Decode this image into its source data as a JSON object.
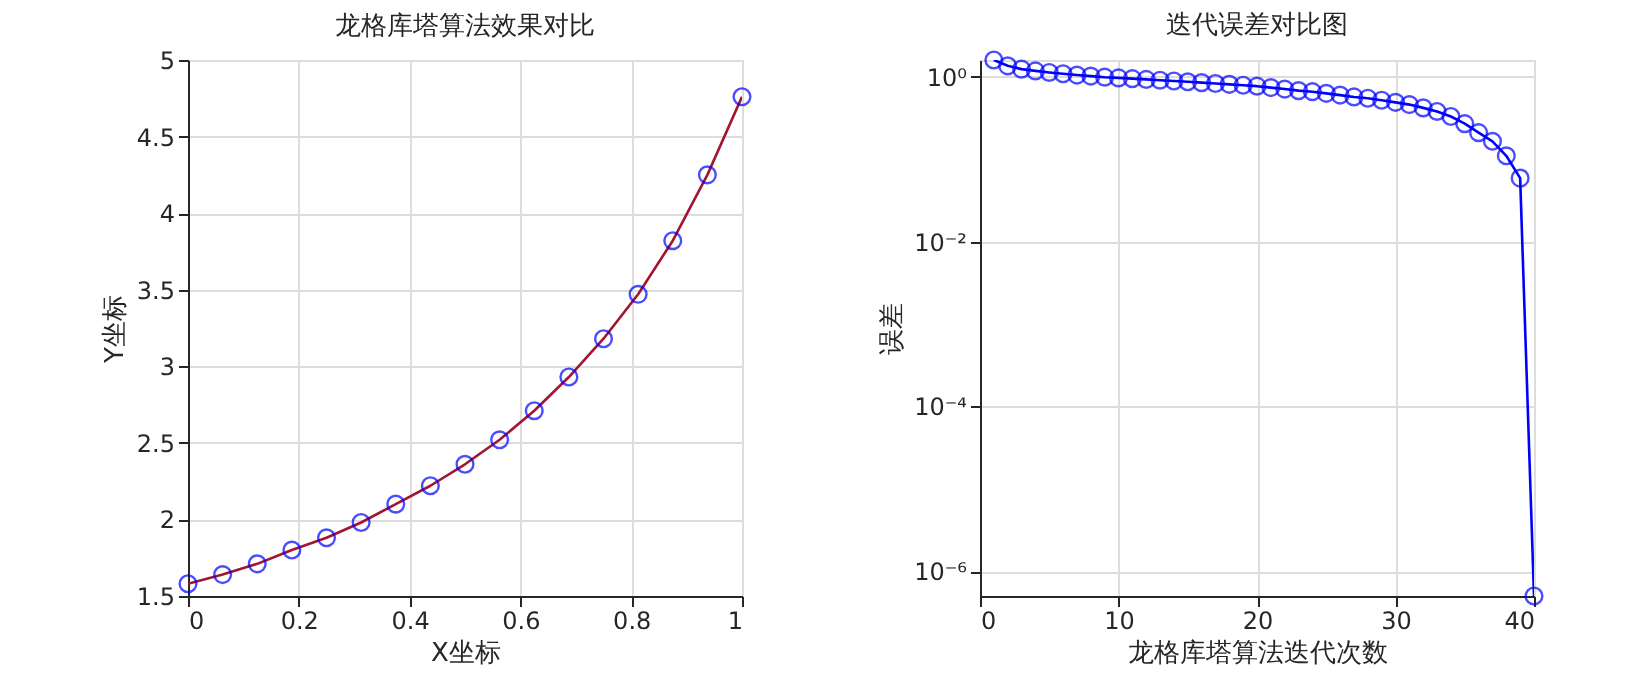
{
  "chart_data": [
    {
      "type": "line",
      "title": "龙格库塔算法效果对比",
      "xlabel": "X坐标",
      "ylabel": "Y坐标",
      "x": [
        0,
        0.0625,
        0.125,
        0.1875,
        0.25,
        0.3125,
        0.375,
        0.4375,
        0.5,
        0.5625,
        0.625,
        0.6875,
        0.75,
        0.8125,
        0.875,
        0.9375,
        1
      ],
      "series": [
        {
          "type": "line",
          "color": "#a2142f",
          "marker": "none",
          "values": [
            1.58,
            1.64,
            1.71,
            1.8,
            1.88,
            1.98,
            2.1,
            2.22,
            2.36,
            2.52,
            2.71,
            2.93,
            3.18,
            3.47,
            3.82,
            4.25,
            4.76
          ]
        },
        {
          "type": "scatter",
          "color": "#0000ff",
          "marker": "circle",
          "values": [
            1.58,
            1.64,
            1.71,
            1.8,
            1.88,
            1.98,
            2.1,
            2.22,
            2.36,
            2.52,
            2.71,
            2.93,
            3.18,
            3.47,
            3.82,
            4.25,
            4.76
          ]
        }
      ],
      "xlim": [
        0,
        1
      ],
      "xticks": [
        0,
        0.2,
        0.4,
        0.6,
        0.8,
        1
      ],
      "ylim": [
        1.5,
        5
      ],
      "yticks": [
        1.5,
        2,
        2.5,
        3,
        3.5,
        4,
        4.5,
        5
      ],
      "grid": true,
      "legend": false
    },
    {
      "type": "line",
      "title": "迭代误差对比图",
      "xlabel": "龙格库塔算法迭代次数",
      "ylabel": "误差",
      "log": "y",
      "marker": "circle",
      "x": [
        1,
        2,
        3,
        4,
        5,
        6,
        7,
        8,
        9,
        10,
        11,
        12,
        13,
        14,
        15,
        16,
        17,
        18,
        19,
        20,
        21,
        22,
        23,
        24,
        25,
        26,
        27,
        28,
        29,
        30,
        31,
        32,
        33,
        34,
        35,
        36,
        37,
        38,
        39,
        40
      ],
      "series": [
        {
          "color": "#0000ff",
          "values": [
            1.6,
            1.36,
            1.24,
            1.18,
            1.13,
            1.09,
            1.05,
            1.02,
            0.99,
            0.97,
            0.95,
            0.93,
            0.91,
            0.89,
            0.87,
            0.85,
            0.83,
            0.81,
            0.79,
            0.77,
            0.74,
            0.71,
            0.68,
            0.66,
            0.63,
            0.6,
            0.57,
            0.55,
            0.52,
            0.49,
            0.46,
            0.42,
            0.38,
            0.33,
            0.27,
            0.21,
            0.165,
            0.11,
            0.059,
            5e-07
          ]
        }
      ],
      "xlim": [
        0,
        40
      ],
      "xticks": [
        0,
        10,
        20,
        30,
        40
      ],
      "ylim": [
        5e-07,
        1.6
      ],
      "yticks": [
        {
          "value": 1e-06,
          "label": "10⁻⁶"
        },
        {
          "value": 0.0001,
          "label": "10⁻⁴"
        },
        {
          "value": 0.01,
          "label": "10⁻²"
        },
        {
          "value": 1,
          "label": "10⁰"
        }
      ],
      "grid": true,
      "legend": false
    }
  ]
}
